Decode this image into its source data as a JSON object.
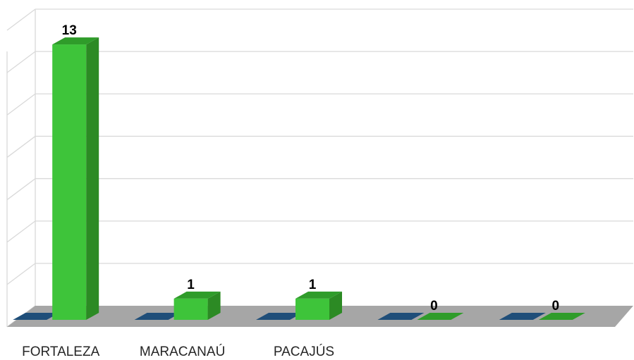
{
  "chart_data": {
    "type": "bar",
    "categories": [
      "FORTALEZA",
      "MARACANAÚ",
      "PACAJÚS",
      "",
      ""
    ],
    "series": [
      {
        "values": [
          0,
          0,
          0,
          0,
          0
        ],
        "color": "#1f4e79"
      },
      {
        "values": [
          13,
          1,
          1,
          0,
          0
        ],
        "color": "#3ec43a"
      }
    ],
    "data_labels": [
      "13",
      "1",
      "1",
      "0",
      "0"
    ],
    "ylim": [
      0,
      14
    ],
    "grid": true,
    "three_d": true,
    "colors": {
      "grid": "#d9d9d9",
      "floor": "#a6a6a6",
      "bar_side": "#2c8a24",
      "bar_top": "#2f9c2a"
    }
  }
}
